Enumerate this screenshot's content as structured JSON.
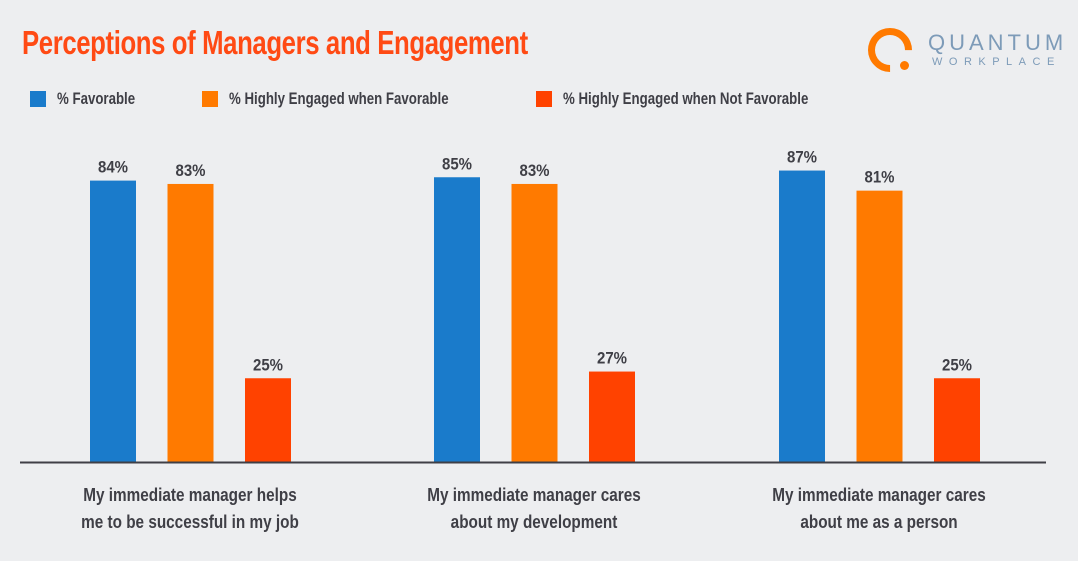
{
  "chart_data": {
    "type": "bar",
    "title": "Perceptions of Managers and Engagement",
    "categories": [
      [
        "My immediate manager helps",
        "me to be successful in my job"
      ],
      [
        "My immediate manager cares",
        "about my development"
      ],
      [
        "My immediate manager cares",
        "about me as a person"
      ]
    ],
    "series": [
      {
        "name": "% Favorable",
        "color": "#1a7bcb",
        "values": [
          84,
          85,
          87
        ],
        "labels": [
          "84%",
          "85%",
          "87%"
        ]
      },
      {
        "name": "% Highly Engaged when Favorable",
        "color": "#ff7a00",
        "values": [
          83,
          83,
          81
        ],
        "labels": [
          "83%",
          "83%",
          "81%"
        ]
      },
      {
        "name": "% Highly Engaged when Not Favorable",
        "color": "#ff4200",
        "values": [
          25,
          27,
          25
        ],
        "labels": [
          "25%",
          "27%",
          "25%"
        ]
      }
    ],
    "ylim": [
      0,
      100
    ],
    "grid": false,
    "legend_position": "top-left"
  },
  "logo": {
    "line1": "QUANTUM",
    "line2": "WORKPLACE"
  }
}
